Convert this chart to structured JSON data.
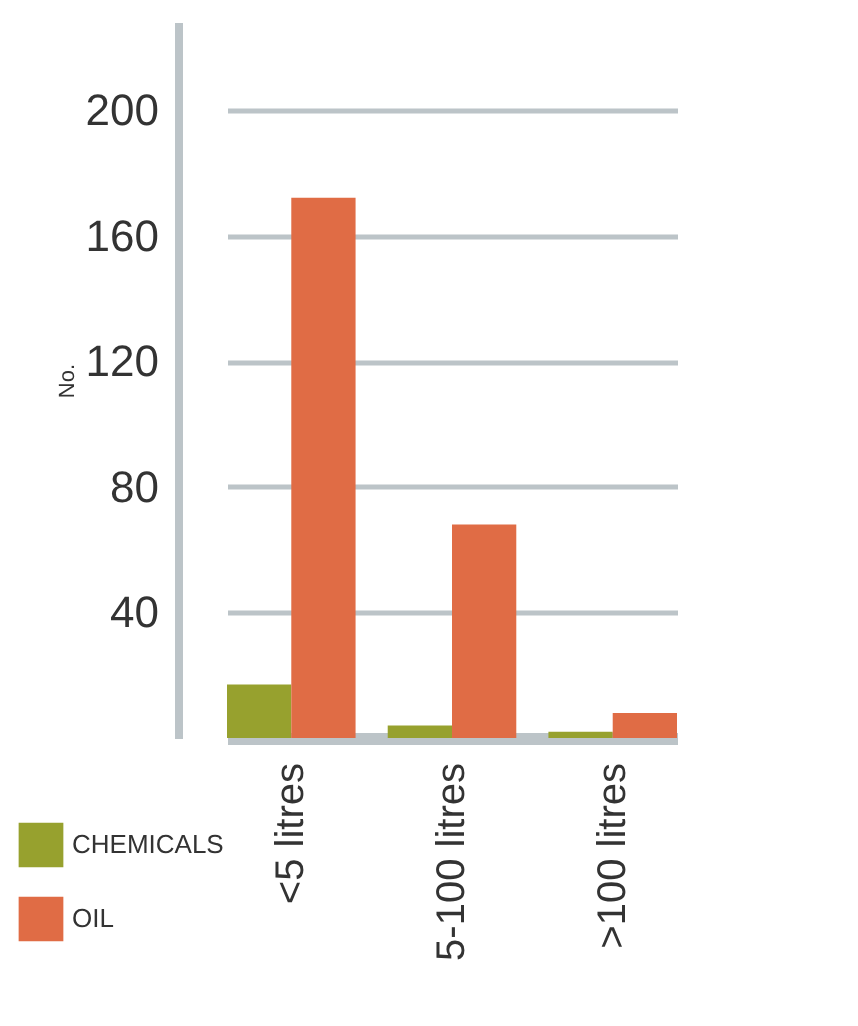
{
  "chart_data": {
    "type": "bar",
    "ylabel": "No.",
    "categories": [
      "<5 litres",
      "5-100 litres",
      ">100 litres"
    ],
    "series": [
      {
        "name": "CHEMICALS",
        "color": "#97a12e",
        "values": [
          17,
          4,
          2
        ]
      },
      {
        "name": "OIL",
        "color": "#e06c45",
        "values": [
          172,
          68,
          8
        ]
      }
    ],
    "ylim": [
      0,
      228
    ],
    "yticks": [
      40,
      80,
      120,
      160,
      200
    ],
    "grid": "y",
    "legend": "bottom left"
  }
}
